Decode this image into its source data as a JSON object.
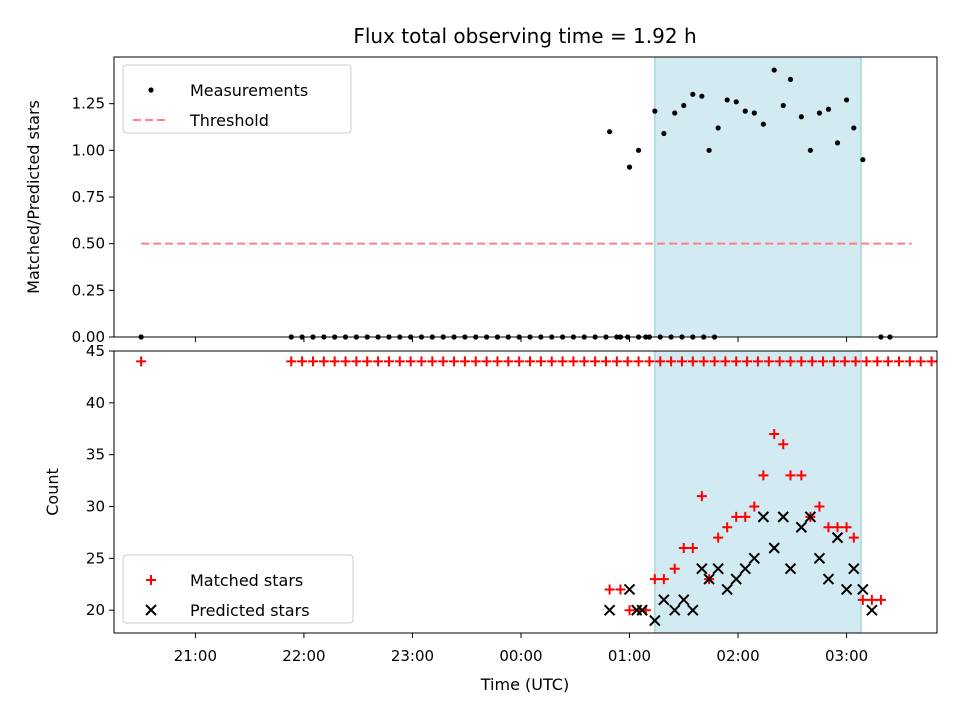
{
  "chart_data": {
    "title": "Flux total observing time = 1.92 h",
    "xlabel": "Time (UTC)",
    "shaded_region": {
      "start": "01:14",
      "end": "03:08",
      "color": "#add8e6"
    },
    "x_axis": {
      "range": [
        "20:15",
        "03:50"
      ],
      "tick_labels": [
        "21:00",
        "22:00",
        "23:00",
        "00:00",
        "01:00",
        "02:00",
        "03:00"
      ]
    },
    "top_panel": {
      "type": "scatter",
      "ylabel": "Matched/Predicted stars",
      "ylim": [
        0,
        1.5
      ],
      "ytick_labels": [
        "0.00",
        "0.25",
        "0.50",
        "0.75",
        "1.00",
        "1.25"
      ],
      "legend": {
        "location": "upper-left",
        "entries": [
          "Measurements",
          "Threshold"
        ]
      },
      "threshold": {
        "name": "Threshold",
        "y": 0.5,
        "x_range": [
          "20:30",
          "03:36"
        ],
        "color": "#ff8080"
      },
      "series": [
        {
          "name": "Measurements",
          "color": "#000000",
          "points": [
            [
              "20:30",
              0
            ],
            [
              "21:53",
              0
            ],
            [
              "21:59",
              0
            ],
            [
              "22:05",
              0
            ],
            [
              "22:11",
              0
            ],
            [
              "22:17",
              0
            ],
            [
              "22:23",
              0
            ],
            [
              "22:29",
              0
            ],
            [
              "22:35",
              0
            ],
            [
              "22:41",
              0
            ],
            [
              "22:47",
              0
            ],
            [
              "22:53",
              0
            ],
            [
              "22:59",
              0
            ],
            [
              "23:05",
              0
            ],
            [
              "23:11",
              0
            ],
            [
              "23:17",
              0
            ],
            [
              "23:23",
              0
            ],
            [
              "23:29",
              0
            ],
            [
              "23:35",
              0
            ],
            [
              "23:41",
              0
            ],
            [
              "23:47",
              0
            ],
            [
              "23:53",
              0
            ],
            [
              "23:59",
              0
            ],
            [
              "00:05",
              0
            ],
            [
              "00:11",
              0
            ],
            [
              "00:17",
              0
            ],
            [
              "00:23",
              0
            ],
            [
              "00:29",
              0
            ],
            [
              "00:35",
              0
            ],
            [
              "00:41",
              0
            ],
            [
              "00:47",
              0
            ],
            [
              "00:53",
              0
            ],
            [
              "00:59",
              0
            ],
            [
              "01:05",
              0
            ],
            [
              "01:11",
              0
            ],
            [
              "01:17",
              0
            ],
            [
              "01:23",
              0
            ],
            [
              "01:29",
              0
            ],
            [
              "01:35",
              0
            ],
            [
              "01:41",
              0
            ],
            [
              "01:47",
              0
            ],
            [
              "00:49",
              1.1
            ],
            [
              "00:55",
              0
            ],
            [
              "01:00",
              0.91
            ],
            [
              "01:05",
              1.0
            ],
            [
              "01:09",
              0
            ],
            [
              "01:14",
              1.21
            ],
            [
              "01:19",
              1.09
            ],
            [
              "01:25",
              1.2
            ],
            [
              "01:30",
              1.24
            ],
            [
              "01:35",
              1.3
            ],
            [
              "01:40",
              1.29
            ],
            [
              "01:44",
              1.0
            ],
            [
              "01:49",
              1.12
            ],
            [
              "01:54",
              1.27
            ],
            [
              "01:59",
              1.26
            ],
            [
              "02:04",
              1.21
            ],
            [
              "02:09",
              1.2
            ],
            [
              "02:14",
              1.14
            ],
            [
              "02:20",
              1.43
            ],
            [
              "02:25",
              1.24
            ],
            [
              "02:29",
              1.38
            ],
            [
              "02:35",
              1.18
            ],
            [
              "02:40",
              1.0
            ],
            [
              "02:45",
              1.2
            ],
            [
              "02:50",
              1.22
            ],
            [
              "02:55",
              1.04
            ],
            [
              "03:00",
              1.27
            ],
            [
              "03:04",
              1.12
            ],
            [
              "03:09",
              0.95
            ],
            [
              "03:19",
              0
            ],
            [
              "03:24",
              0
            ]
          ]
        }
      ]
    },
    "bottom_panel": {
      "type": "scatter",
      "ylabel": "Count",
      "ylim": [
        17.8,
        45
      ],
      "ytick_labels": [
        "20",
        "25",
        "30",
        "35",
        "40",
        "45"
      ],
      "legend": {
        "location": "lower-left",
        "entries": [
          "Matched stars",
          "Predicted stars"
        ]
      },
      "series": [
        {
          "name": "Matched stars",
          "marker": "+",
          "color": "#ff0000",
          "points": [
            [
              "20:30",
              44
            ],
            [
              "21:53",
              44
            ],
            [
              "21:59",
              44
            ],
            [
              "22:05",
              44
            ],
            [
              "22:11",
              44
            ],
            [
              "22:17",
              44
            ],
            [
              "22:23",
              44
            ],
            [
              "22:29",
              44
            ],
            [
              "22:35",
              44
            ],
            [
              "22:41",
              44
            ],
            [
              "22:47",
              44
            ],
            [
              "22:53",
              44
            ],
            [
              "22:59",
              44
            ],
            [
              "23:05",
              44
            ],
            [
              "23:11",
              44
            ],
            [
              "23:17",
              44
            ],
            [
              "23:23",
              44
            ],
            [
              "23:29",
              44
            ],
            [
              "23:35",
              44
            ],
            [
              "23:41",
              44
            ],
            [
              "23:47",
              44
            ],
            [
              "23:53",
              44
            ],
            [
              "23:59",
              44
            ],
            [
              "00:05",
              44
            ],
            [
              "00:11",
              44
            ],
            [
              "00:17",
              44
            ],
            [
              "00:23",
              44
            ],
            [
              "00:29",
              44
            ],
            [
              "00:35",
              44
            ],
            [
              "00:41",
              44
            ],
            [
              "00:47",
              44
            ],
            [
              "00:53",
              44
            ],
            [
              "00:59",
              44
            ],
            [
              "01:05",
              44
            ],
            [
              "01:11",
              44
            ],
            [
              "01:17",
              44
            ],
            [
              "01:23",
              44
            ],
            [
              "01:29",
              44
            ],
            [
              "01:35",
              44
            ],
            [
              "01:41",
              44
            ],
            [
              "01:47",
              44
            ],
            [
              "01:53",
              44
            ],
            [
              "01:59",
              44
            ],
            [
              "02:05",
              44
            ],
            [
              "02:11",
              44
            ],
            [
              "02:17",
              44
            ],
            [
              "02:23",
              44
            ],
            [
              "02:29",
              44
            ],
            [
              "02:35",
              44
            ],
            [
              "02:41",
              44
            ],
            [
              "02:47",
              44
            ],
            [
              "02:53",
              44
            ],
            [
              "02:59",
              44
            ],
            [
              "03:05",
              44
            ],
            [
              "03:11",
              44
            ],
            [
              "03:17",
              44
            ],
            [
              "03:23",
              44
            ],
            [
              "03:29",
              44
            ],
            [
              "03:35",
              44
            ],
            [
              "03:41",
              44
            ],
            [
              "03:47",
              44
            ],
            [
              "00:49",
              22
            ],
            [
              "00:55",
              22
            ],
            [
              "01:00",
              20
            ],
            [
              "01:05",
              20
            ],
            [
              "01:09",
              20
            ],
            [
              "01:14",
              23
            ],
            [
              "01:19",
              23
            ],
            [
              "01:25",
              24
            ],
            [
              "01:30",
              26
            ],
            [
              "01:35",
              26
            ],
            [
              "01:40",
              31
            ],
            [
              "01:44",
              23
            ],
            [
              "01:49",
              27
            ],
            [
              "01:54",
              28
            ],
            [
              "01:59",
              29
            ],
            [
              "02:04",
              29
            ],
            [
              "02:09",
              30
            ],
            [
              "02:14",
              33
            ],
            [
              "02:20",
              37
            ],
            [
              "02:25",
              36
            ],
            [
              "02:29",
              33
            ],
            [
              "02:35",
              33
            ],
            [
              "02:40",
              29
            ],
            [
              "02:45",
              30
            ],
            [
              "02:50",
              28
            ],
            [
              "02:55",
              28
            ],
            [
              "03:00",
              28
            ],
            [
              "03:04",
              27
            ],
            [
              "03:09",
              21
            ],
            [
              "03:14",
              21
            ],
            [
              "03:19",
              21
            ]
          ]
        },
        {
          "name": "Predicted stars",
          "marker": "x",
          "color": "#000000",
          "points": [
            [
              "00:49",
              20
            ],
            [
              "01:00",
              22
            ],
            [
              "01:04",
              20
            ],
            [
              "01:07",
              20
            ],
            [
              "01:14",
              19
            ],
            [
              "01:19",
              21
            ],
            [
              "01:25",
              20
            ],
            [
              "01:30",
              21
            ],
            [
              "01:35",
              20
            ],
            [
              "01:40",
              24
            ],
            [
              "01:44",
              23
            ],
            [
              "01:49",
              24
            ],
            [
              "01:54",
              22
            ],
            [
              "01:59",
              23
            ],
            [
              "02:04",
              24
            ],
            [
              "02:09",
              25
            ],
            [
              "02:14",
              29
            ],
            [
              "02:20",
              26
            ],
            [
              "02:25",
              29
            ],
            [
              "02:29",
              24
            ],
            [
              "02:35",
              28
            ],
            [
              "02:40",
              29
            ],
            [
              "02:45",
              25
            ],
            [
              "02:50",
              23
            ],
            [
              "02:55",
              27
            ],
            [
              "03:00",
              22
            ],
            [
              "03:04",
              24
            ],
            [
              "03:09",
              22
            ],
            [
              "03:14",
              20
            ]
          ]
        }
      ]
    }
  }
}
